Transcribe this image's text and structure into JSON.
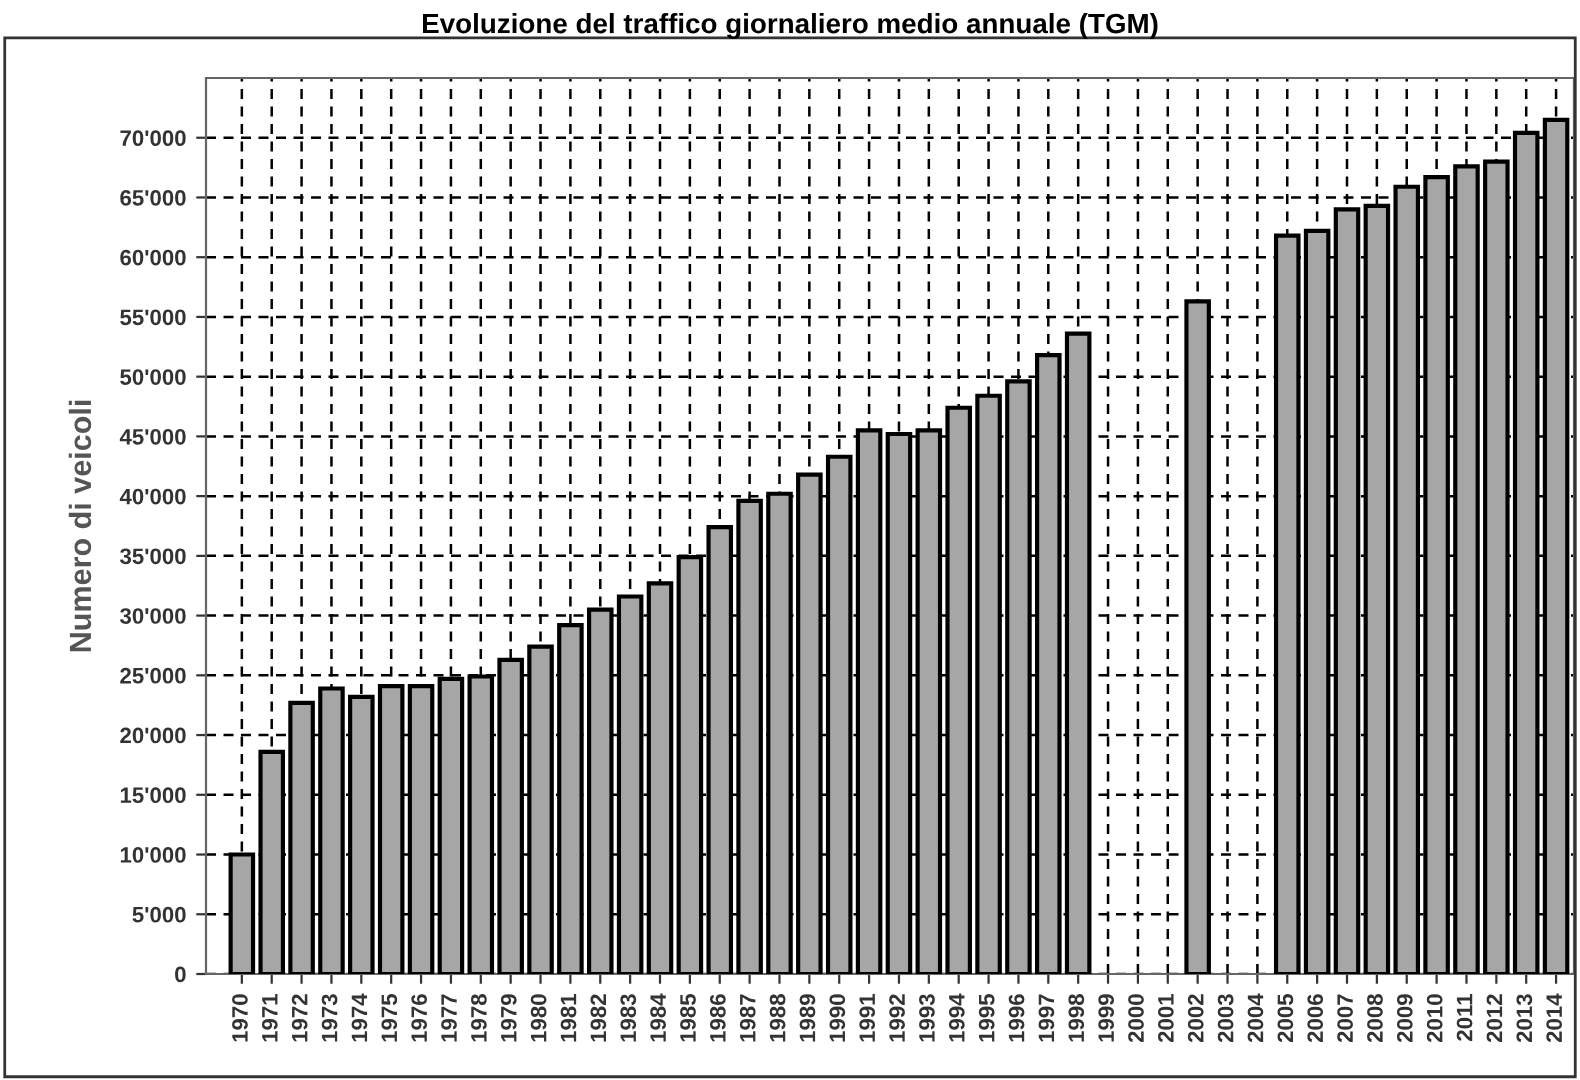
{
  "chart_data": {
    "type": "bar",
    "title": "Evoluzione del traffico giornaliero medio annuale (TGM)",
    "ylabel": "Numero di veicoli",
    "categories": [
      "1970",
      "1971",
      "1972",
      "1973",
      "1974",
      "1975",
      "1976",
      "1977",
      "1978",
      "1979",
      "1980",
      "1981",
      "1982",
      "1983",
      "1984",
      "1985",
      "1986",
      "1987",
      "1988",
      "1989",
      "1990",
      "1991",
      "1992",
      "1993",
      "1994",
      "1995",
      "1996",
      "1997",
      "1998",
      "1999",
      "2000",
      "2001",
      "2002",
      "2003",
      "2004",
      "2005",
      "2006",
      "2007",
      "2008",
      "2009",
      "2010",
      "2011",
      "2012",
      "2013",
      "2014"
    ],
    "values": [
      10000,
      18600,
      22700,
      23900,
      23200,
      24100,
      24100,
      24700,
      24900,
      26300,
      27400,
      29200,
      30500,
      31600,
      32700,
      34900,
      37400,
      39600,
      40200,
      41800,
      43300,
      45500,
      45200,
      45500,
      47400,
      48400,
      49600,
      51800,
      53600,
      null,
      null,
      null,
      56300,
      null,
      null,
      61800,
      62200,
      64000,
      64300,
      65900,
      66700,
      67600,
      68000,
      70400,
      71500
    ],
    "color": "#a6a6a6",
    "ylim": [
      0,
      75000
    ],
    "yticks": [
      {
        "value": 0,
        "label": "0"
      },
      {
        "value": 5000,
        "label": "5'000"
      },
      {
        "value": 10000,
        "label": "10'000"
      },
      {
        "value": 15000,
        "label": "15'000"
      },
      {
        "value": 20000,
        "label": "20'000"
      },
      {
        "value": 25000,
        "label": "25'000"
      },
      {
        "value": 30000,
        "label": "30'000"
      },
      {
        "value": 35000,
        "label": "35'000"
      },
      {
        "value": 40000,
        "label": "40'000"
      },
      {
        "value": 45000,
        "label": "45'000"
      },
      {
        "value": 50000,
        "label": "50'000"
      },
      {
        "value": 55000,
        "label": "55'000"
      },
      {
        "value": 60000,
        "label": "60'000"
      },
      {
        "value": 65000,
        "label": "65'000"
      },
      {
        "value": 70000,
        "label": "70'000"
      }
    ],
    "grid": true,
    "line_style": "dashed"
  }
}
